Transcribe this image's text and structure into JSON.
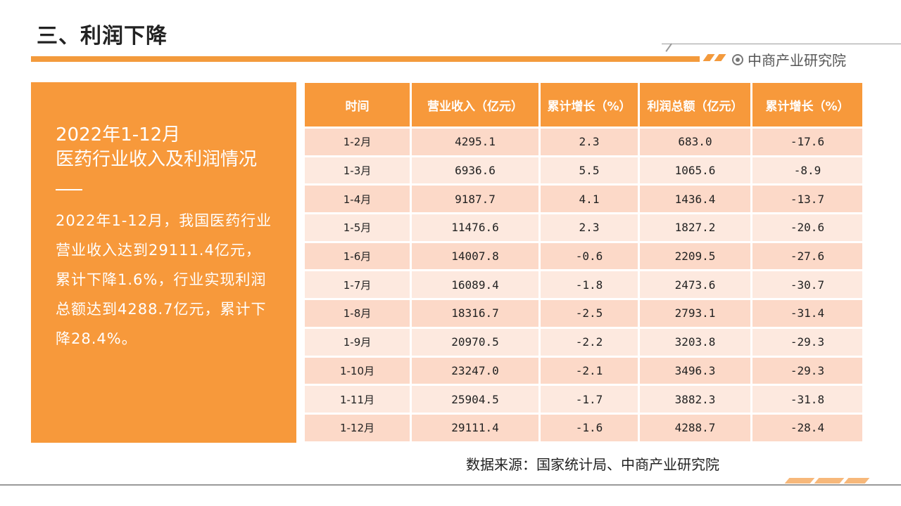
{
  "header": {
    "title": "三、利润下降",
    "brand": "中商产业研究院"
  },
  "left_panel": {
    "heading_line1": "2022年1-12月",
    "heading_line2": "医药行业收入及利润情况",
    "body": "2022年1-12月，我国医药行业营业收入达到29111.4亿元，累计下降1.6%，行业实现利润总额达到4288.7亿元，累计下降28.4%。"
  },
  "table": {
    "headers": [
      "时间",
      "营业收入（亿元）",
      "累计增长（%）",
      "利润总额（亿元）",
      "累计增长（%）"
    ],
    "rows": [
      [
        "1-2月",
        "4295.1",
        "2.3",
        "683.0",
        "-17.6"
      ],
      [
        "1-3月",
        "6936.6",
        "5.5",
        "1065.6",
        "-8.9"
      ],
      [
        "1-4月",
        "9187.7",
        "4.1",
        "1436.4",
        "-13.7"
      ],
      [
        "1-5月",
        "11476.6",
        "2.3",
        "1827.2",
        "-20.6"
      ],
      [
        "1-6月",
        "14007.8",
        "-0.6",
        "2209.5",
        "-27.6"
      ],
      [
        "1-7月",
        "16089.4",
        "-1.8",
        "2473.6",
        "-30.7"
      ],
      [
        "1-8月",
        "18316.7",
        "-2.5",
        "2793.1",
        "-31.4"
      ],
      [
        "1-9月",
        "20970.5",
        "-2.2",
        "3203.8",
        "-29.3"
      ],
      [
        "1-10月",
        "23247.0",
        "-2.1",
        "3496.3",
        "-29.3"
      ],
      [
        "1-11月",
        "25904.5",
        "-1.7",
        "3882.3",
        "-31.8"
      ],
      [
        "1-12月",
        "29111.4",
        "-1.6",
        "4288.7",
        "-28.4"
      ]
    ]
  },
  "source": "数据来源：国家统计局、中商产业研究院",
  "colors": {
    "accent": "#f7993b",
    "row_dark": "#fcd9c8",
    "row_light": "#fde9df"
  }
}
